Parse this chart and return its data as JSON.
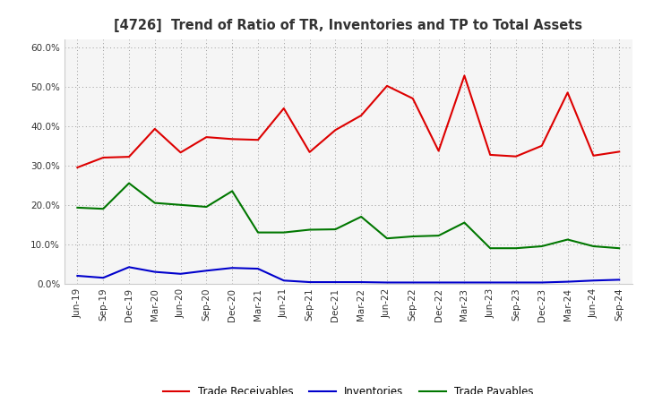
{
  "title": "[4726]  Trend of Ratio of TR, Inventories and TP to Total Assets",
  "x_labels": [
    "Jun-19",
    "Sep-19",
    "Dec-19",
    "Mar-20",
    "Jun-20",
    "Sep-20",
    "Dec-20",
    "Mar-21",
    "Jun-21",
    "Sep-21",
    "Dec-21",
    "Mar-22",
    "Jun-22",
    "Sep-22",
    "Dec-22",
    "Mar-23",
    "Jun-23",
    "Sep-23",
    "Dec-23",
    "Mar-24",
    "Jun-24",
    "Sep-24"
  ],
  "trade_receivables": [
    0.295,
    0.32,
    0.322,
    0.393,
    0.333,
    0.372,
    0.367,
    0.365,
    0.445,
    0.334,
    0.39,
    0.427,
    0.502,
    0.47,
    0.337,
    0.528,
    0.327,
    0.323,
    0.35,
    0.485,
    0.325,
    0.335
  ],
  "inventories": [
    0.02,
    0.015,
    0.042,
    0.03,
    0.025,
    0.033,
    0.04,
    0.038,
    0.008,
    0.004,
    0.004,
    0.004,
    0.003,
    0.003,
    0.003,
    0.003,
    0.003,
    0.003,
    0.003,
    0.005,
    0.008,
    0.01
  ],
  "trade_payables": [
    0.193,
    0.19,
    0.255,
    0.205,
    0.2,
    0.195,
    0.235,
    0.13,
    0.13,
    0.137,
    0.138,
    0.17,
    0.115,
    0.12,
    0.122,
    0.155,
    0.09,
    0.09,
    0.095,
    0.112,
    0.095,
    0.09
  ],
  "tr_color": "#dd0000",
  "inv_color": "#0000cc",
  "tp_color": "#007700",
  "ylim": [
    0.0,
    0.62
  ],
  "yticks": [
    0.0,
    0.1,
    0.2,
    0.3,
    0.4,
    0.5,
    0.6
  ],
  "legend_labels": [
    "Trade Receivables",
    "Inventories",
    "Trade Payables"
  ],
  "bg_color": "#ffffff",
  "plot_bg_color": "#f5f5f5",
  "grid_color": "#999999",
  "title_color": "#333333"
}
